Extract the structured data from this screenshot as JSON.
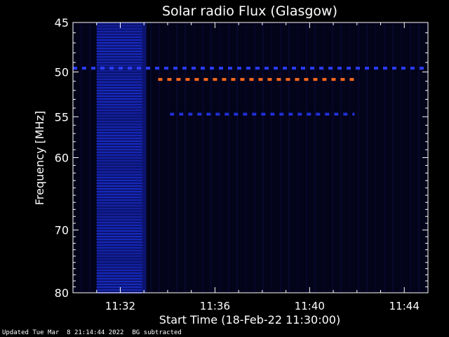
{
  "chart_data": {
    "type": "heatmap",
    "title": "Solar radio Flux (Glasgow)",
    "xlabel": "Start Time (18-Feb-22 11:30:00)",
    "ylabel": "Frequency [MHz]",
    "x_ticks": [
      "11:32",
      "11:36",
      "11:40",
      "11:44"
    ],
    "x_tick_minutes": [
      2,
      6,
      10,
      14
    ],
    "xlim_minutes": [
      0,
      15
    ],
    "y_ticks": [
      45,
      50,
      55,
      60,
      70,
      80
    ],
    "ylim": [
      45,
      80
    ],
    "y_scale": "log",
    "features": [
      {
        "kind": "broadband-emission",
        "t_start_min": 1.0,
        "t_end_min": 3.1,
        "f_min_mhz": 45,
        "f_max_mhz": 80,
        "color": "#1a2fd0"
      },
      {
        "kind": "interference-line",
        "t_start_min": 0.0,
        "t_end_min": 15.0,
        "freq_mhz": 49.6,
        "color": "#2a3cff"
      },
      {
        "kind": "interference-line",
        "t_start_min": 3.6,
        "t_end_min": 11.9,
        "freq_mhz": 50.8,
        "color": "#ff6a1a"
      },
      {
        "kind": "interference-line",
        "t_start_min": 4.1,
        "t_end_min": 11.9,
        "freq_mhz": 54.7,
        "color": "#2030d8"
      }
    ],
    "colors": {
      "background": "#000000",
      "plot_background": "#03031a",
      "axis": "#ffffff"
    }
  },
  "footer": {
    "updated": "Updated Tue Mar  8 21:14:44 2022",
    "note": "BG subtracted"
  }
}
